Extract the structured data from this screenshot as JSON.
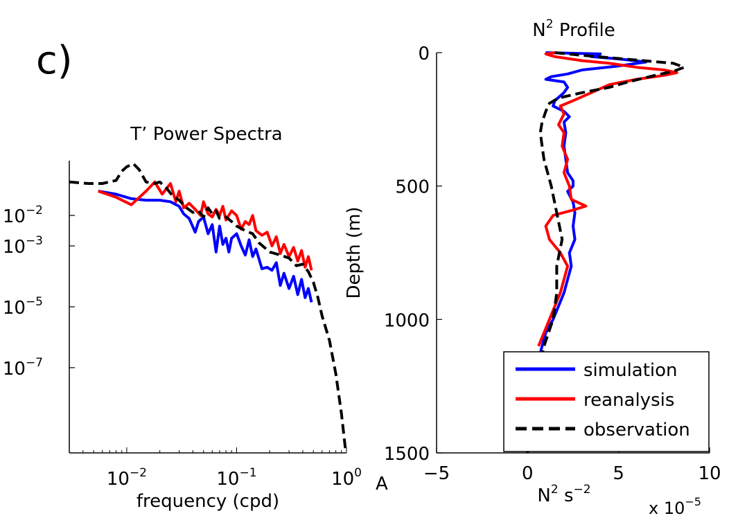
{
  "panel_label": "c)",
  "stray_label": "A",
  "chart_data": [
    {
      "type": "line",
      "title": "T’ Power Spectra",
      "xlabel": "frequency (cpd)",
      "ylabel": "",
      "xscale": "log",
      "yscale": "log",
      "xlim": [
        0.003,
        1.0
      ],
      "ylim_log10": [
        -9.8,
        -0.2
      ],
      "x_ticks": [
        {
          "base": "10",
          "exp": "−2",
          "value": 0.01
        },
        {
          "base": "10",
          "exp": "−1",
          "value": 0.1
        },
        {
          "base": "10",
          "exp": "0",
          "value": 1
        }
      ],
      "y_ticks": [
        {
          "base": "10",
          "exp": "−2",
          "value_log10": -2
        },
        {
          "base": "10",
          "exp": "−3",
          "value_log10": -3
        },
        {
          "base": "10",
          "exp": "−5",
          "value_log10": -5
        },
        {
          "base": "10",
          "exp": "−7",
          "value_log10": -7
        }
      ],
      "grid": false,
      "series": [
        {
          "color": "#0000ff",
          "dash": "solid",
          "x": [
            0.0055,
            0.008,
            0.011,
            0.015,
            0.02,
            0.025,
            0.03,
            0.033,
            0.037,
            0.042,
            0.045,
            0.05,
            0.055,
            0.06,
            0.065,
            0.07,
            0.075,
            0.08,
            0.085,
            0.09,
            0.1,
            0.11,
            0.12,
            0.13,
            0.14,
            0.15,
            0.17,
            0.19,
            0.21,
            0.23,
            0.25,
            0.27,
            0.3,
            0.33,
            0.36,
            0.39,
            0.42,
            0.45,
            0.48
          ],
          "log10y": [
            -1.2,
            -1.3,
            -1.45,
            -1.5,
            -1.5,
            -1.55,
            -1.7,
            -1.95,
            -2.1,
            -2.55,
            -2.2,
            -2.05,
            -2.6,
            -2.3,
            -3.2,
            -2.35,
            -2.95,
            -2.75,
            -3.2,
            -2.75,
            -2.6,
            -3.0,
            -3.3,
            -2.8,
            -3.35,
            -3.1,
            -3.75,
            -3.7,
            -3.8,
            -3.55,
            -4.3,
            -3.9,
            -4.4,
            -4.0,
            -4.6,
            -4.1,
            -4.7,
            -4.4,
            -4.85
          ]
        },
        {
          "color": "#ff0000",
          "dash": "solid",
          "x": [
            0.0055,
            0.008,
            0.011,
            0.015,
            0.018,
            0.021,
            0.025,
            0.028,
            0.03,
            0.033,
            0.037,
            0.042,
            0.047,
            0.05,
            0.055,
            0.06,
            0.065,
            0.07,
            0.075,
            0.08,
            0.09,
            0.1,
            0.11,
            0.12,
            0.13,
            0.14,
            0.15,
            0.17,
            0.19,
            0.21,
            0.23,
            0.25,
            0.27,
            0.3,
            0.33,
            0.36,
            0.39,
            0.42,
            0.45,
            0.48
          ],
          "log10y": [
            -1.2,
            -1.4,
            -1.65,
            -1.2,
            -0.9,
            -1.3,
            -0.95,
            -1.55,
            -1.2,
            -1.75,
            -1.6,
            -1.8,
            -2.0,
            -1.55,
            -1.95,
            -2.05,
            -1.8,
            -2.0,
            -1.7,
            -2.15,
            -1.85,
            -2.0,
            -2.45,
            -2.2,
            -2.3,
            -2.0,
            -2.5,
            -2.65,
            -2.55,
            -3.0,
            -2.7,
            -3.25,
            -2.95,
            -3.35,
            -3.05,
            -3.5,
            -3.15,
            -3.7,
            -3.35,
            -3.8
          ]
        },
        {
          "color": "#000000",
          "dash": "dashed",
          "x": [
            0.003,
            0.0045,
            0.006,
            0.008,
            0.009,
            0.01,
            0.0115,
            0.013,
            0.015,
            0.018,
            0.02,
            0.023,
            0.026,
            0.03,
            0.035,
            0.04,
            0.045,
            0.05,
            0.055,
            0.06,
            0.065,
            0.07,
            0.08,
            0.09,
            0.1,
            0.12,
            0.14,
            0.16,
            0.2,
            0.25,
            0.3,
            0.35,
            0.4,
            0.45,
            0.5,
            0.55,
            0.6,
            0.7,
            0.8,
            0.9,
            0.98
          ],
          "log10y": [
            -0.9,
            -0.95,
            -0.95,
            -0.85,
            -0.55,
            -0.4,
            -0.3,
            -0.5,
            -0.9,
            -0.95,
            -0.9,
            -1.1,
            -1.35,
            -1.5,
            -1.75,
            -1.9,
            -1.85,
            -2.05,
            -1.75,
            -1.95,
            -1.85,
            -2.1,
            -2.05,
            -2.2,
            -2.35,
            -2.5,
            -2.6,
            -2.9,
            -3.2,
            -3.3,
            -3.4,
            -3.65,
            -3.6,
            -3.85,
            -4.2,
            -4.7,
            -5.3,
            -6.1,
            -7.2,
            -8.5,
            -9.7
          ]
        }
      ]
    },
    {
      "type": "line",
      "title_base": "N",
      "title_sup": "2",
      "title_rest": " Profile",
      "xlabel_base": "N",
      "xlabel_sup1": "2",
      "xlabel_mid": " s",
      "xlabel_sup2": "−2",
      "x_multiplier_base": "x 10",
      "x_multiplier_exp": "−5",
      "ylabel": "Depth (m)",
      "xlim": [
        -5,
        10
      ],
      "ylim": [
        0,
        1500
      ],
      "y_reversed": true,
      "x_ticks": [
        "−5",
        "0",
        "5",
        "10"
      ],
      "y_ticks": [
        "0",
        "500",
        "1000",
        "1500"
      ],
      "grid": false,
      "legend": {
        "placement": "bottom-right",
        "entries": [
          {
            "label": "simulation",
            "color": "#0000ff",
            "dash": "solid"
          },
          {
            "label": "reanalysis",
            "color": "#ff0000",
            "dash": "solid"
          },
          {
            "label": "observation",
            "color": "#000000",
            "dash": "dashed"
          }
        ]
      },
      "series": [
        {
          "color": "#0000ff",
          "dash": "solid",
          "depth": [
            0,
            5,
            15,
            25,
            35,
            50,
            65,
            80,
            90,
            100,
            110,
            130,
            150,
            180,
            200,
            220,
            240,
            260,
            300,
            350,
            400,
            450,
            480,
            500,
            520,
            560,
            600,
            650,
            700,
            750,
            800,
            850,
            900,
            950,
            1000,
            1050,
            1100,
            1150,
            1200,
            1300,
            1400,
            1500
          ],
          "n2": [
            1.0,
            4.0,
            3.5,
            5.2,
            6.5,
            5.0,
            3.0,
            2.2,
            1.3,
            1.0,
            2.0,
            2.2,
            2.0,
            1.5,
            1.4,
            2.0,
            2.3,
            2.0,
            2.1,
            2.0,
            2.1,
            2.2,
            2.5,
            2.5,
            2.2,
            2.5,
            2.6,
            2.5,
            2.6,
            2.3,
            2.4,
            2.2,
            2.0,
            1.7,
            1.4,
            1.0,
            0.8,
            0.6,
            0.5,
            0.2,
            0.0,
            0.0
          ]
        },
        {
          "color": "#ff0000",
          "dash": "solid",
          "depth": [
            0,
            5,
            15,
            30,
            40,
            55,
            65,
            75,
            85,
            100,
            120,
            150,
            180,
            200,
            230,
            270,
            300,
            350,
            400,
            450,
            500,
            550,
            575,
            590,
            610,
            650,
            700,
            750,
            800,
            850,
            900,
            950,
            1000,
            1050,
            1100
          ],
          "n2": [
            1.5,
            1.0,
            1.5,
            3.0,
            4.5,
            6.0,
            7.5,
            8.2,
            7.5,
            6.0,
            4.5,
            3.5,
            2.5,
            1.8,
            2.0,
            1.7,
            2.0,
            1.9,
            2.2,
            2.0,
            2.3,
            2.4,
            3.2,
            2.5,
            1.4,
            1.0,
            1.2,
            1.8,
            2.2,
            2.0,
            1.8,
            1.5,
            1.2,
            0.9,
            0.6
          ]
        },
        {
          "color": "#000000",
          "dash": "dashed",
          "depth": [
            0,
            10,
            25,
            40,
            55,
            70,
            85,
            110,
            130,
            150,
            170,
            190,
            220,
            260,
            300,
            350,
            400,
            500,
            600,
            700,
            800,
            900,
            1000,
            1100,
            1200,
            1300,
            1400,
            1500
          ],
          "n2": [
            1.5,
            3.0,
            5.5,
            8.0,
            8.6,
            8.0,
            7.0,
            5.5,
            4.5,
            3.0,
            1.7,
            1.2,
            1.0,
            0.8,
            0.7,
            0.8,
            0.9,
            1.3,
            1.6,
            1.9,
            1.6,
            1.6,
            1.4,
            0.9,
            0.6,
            0.3,
            0.1,
            0.0
          ]
        }
      ]
    }
  ]
}
